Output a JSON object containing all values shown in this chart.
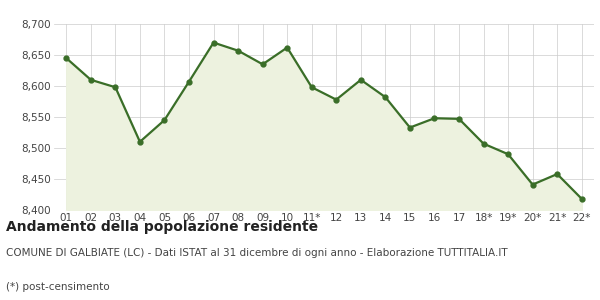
{
  "x_labels": [
    "01",
    "02",
    "03",
    "04",
    "05",
    "06",
    "07",
    "08",
    "09",
    "10",
    "11*",
    "12",
    "13",
    "14",
    "15",
    "16",
    "17",
    "18*",
    "19*",
    "20*",
    "21*",
    "22*"
  ],
  "y_values": [
    8645,
    8610,
    8598,
    8510,
    8545,
    8607,
    8670,
    8657,
    8635,
    8662,
    8598,
    8578,
    8610,
    8582,
    8533,
    8548,
    8547,
    8507,
    8490,
    8441,
    8458,
    8418
  ],
  "line_color": "#3a6e28",
  "fill_color": "#edf2df",
  "marker": "o",
  "marker_size": 3.5,
  "line_width": 1.6,
  "ylim": [
    8400,
    8700
  ],
  "yticks": [
    8400,
    8450,
    8500,
    8550,
    8600,
    8650,
    8700
  ],
  "grid_color": "#cccccc",
  "bg_color": "#ffffff",
  "plot_bg_color": "#ffffff",
  "title": "Andamento della popolazione residente",
  "subtitle": "COMUNE DI GALBIATE (LC) - Dati ISTAT al 31 dicembre di ogni anno - Elaborazione TUTTITALIA.IT",
  "footnote": "(*) post-censimento",
  "title_fontsize": 10,
  "subtitle_fontsize": 7.5,
  "footnote_fontsize": 7.5,
  "tick_fontsize": 7.5
}
